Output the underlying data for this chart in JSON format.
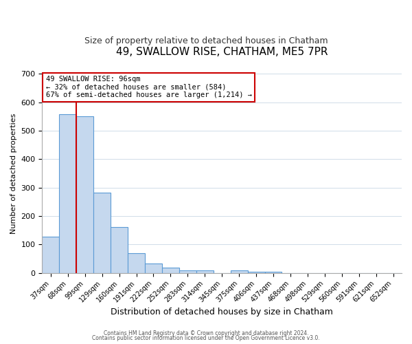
{
  "title": "49, SWALLOW RISE, CHATHAM, ME5 7PR",
  "subtitle": "Size of property relative to detached houses in Chatham",
  "xlabel": "Distribution of detached houses by size in Chatham",
  "ylabel": "Number of detached properties",
  "bar_labels": [
    "37sqm",
    "68sqm",
    "99sqm",
    "129sqm",
    "160sqm",
    "191sqm",
    "222sqm",
    "252sqm",
    "283sqm",
    "314sqm",
    "345sqm",
    "375sqm",
    "406sqm",
    "437sqm",
    "468sqm",
    "498sqm",
    "529sqm",
    "560sqm",
    "591sqm",
    "621sqm",
    "652sqm"
  ],
  "bar_values": [
    127,
    557,
    550,
    283,
    162,
    70,
    33,
    19,
    10,
    10,
    0,
    10,
    5,
    3,
    0,
    0,
    0,
    0,
    0,
    0,
    0
  ],
  "bar_color": "#c5d8ee",
  "bar_edge_color": "#5b9bd5",
  "vline_x": 1.5,
  "vline_color": "#cc0000",
  "annotation_text": "49 SWALLOW RISE: 96sqm\n← 32% of detached houses are smaller (584)\n67% of semi-detached houses are larger (1,214) →",
  "annotation_box_color": "#ffffff",
  "annotation_box_edge": "#cc0000",
  "ylim": [
    0,
    700
  ],
  "yticks": [
    0,
    100,
    200,
    300,
    400,
    500,
    600,
    700
  ],
  "footer_line1": "Contains HM Land Registry data © Crown copyright and database right 2024.",
  "footer_line2": "Contains public sector information licensed under the Open Government Licence v3.0.",
  "background_color": "#ffffff",
  "grid_color": "#d0dce8",
  "title_fontsize": 11,
  "subtitle_fontsize": 9,
  "xlabel_fontsize": 9,
  "ylabel_fontsize": 8,
  "tick_fontsize": 7,
  "annotation_fontsize": 7.5,
  "footer_fontsize": 5.5
}
